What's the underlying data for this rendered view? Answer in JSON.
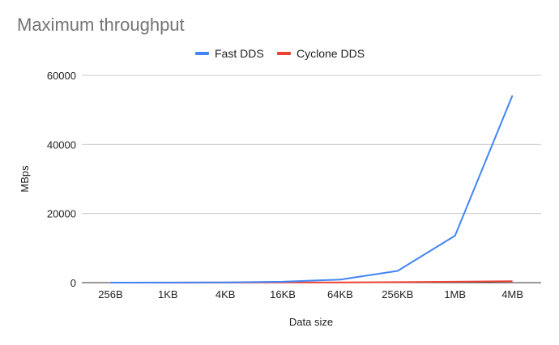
{
  "chart_data": {
    "type": "line",
    "title": "Maximum throughput",
    "xlabel": "Data size",
    "ylabel": "MBps",
    "categories": [
      "256B",
      "1KB",
      "4KB",
      "16KB",
      "64KB",
      "256KB",
      "1MB",
      "4MB"
    ],
    "ylim": [
      0,
      60000
    ],
    "yticks": [
      0,
      20000,
      40000,
      60000
    ],
    "grid": true,
    "legend_position": "top-center",
    "series": [
      {
        "name": "Fast DDS",
        "color": "#4285f4",
        "values": [
          5,
          20,
          70,
          250,
          900,
          3400,
          13600,
          54200
        ]
      },
      {
        "name": "Cyclone DDS",
        "color": "#ea4335",
        "values": [
          2,
          5,
          15,
          40,
          80,
          150,
          250,
          400
        ]
      }
    ]
  }
}
